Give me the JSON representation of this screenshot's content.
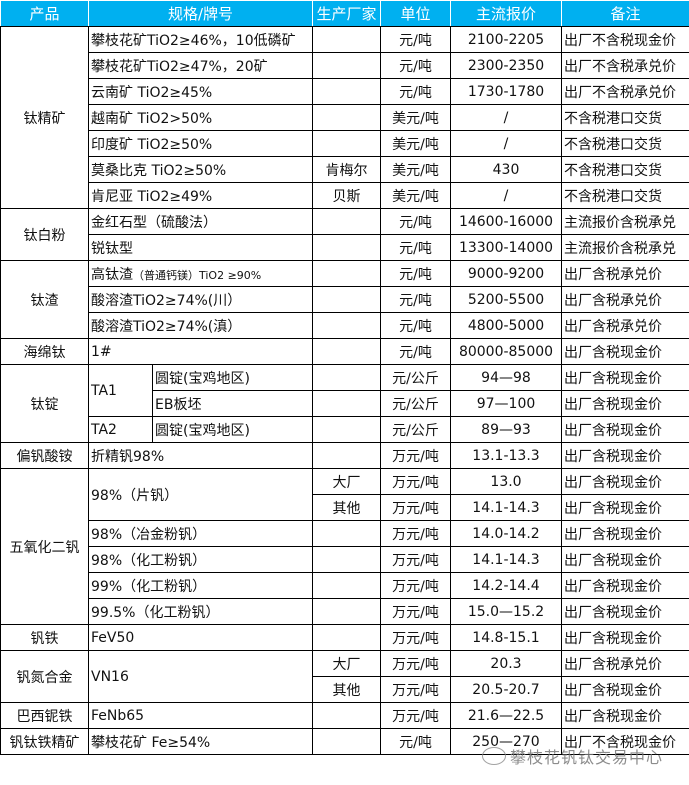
{
  "header": [
    "产品",
    "规格/牌号",
    "生产厂家",
    "单位",
    "主流报价",
    "备注"
  ],
  "products": [
    "钛精矿",
    "钛白粉",
    "钛渣",
    "海绵钛",
    "钛锭",
    "偏钒酸铵",
    "五氧化二钒",
    "钒铁",
    "钒氮合金",
    "巴西铌铁",
    "钒钛铁精矿"
  ],
  "rows": [
    {
      "spec": "攀枝花矿TiO2≥46%，10低磷矿",
      "maker": "",
      "unit": "元/吨",
      "price": "2100-2205",
      "note": "出厂不含税现金价"
    },
    {
      "spec": "攀枝花矿TiO2≥47%，20矿",
      "maker": "",
      "unit": "元/吨",
      "price": "2300-2350",
      "note": "出厂不含税承兑价"
    },
    {
      "spec": "云南矿 TiO2≥45%",
      "maker": "",
      "unit": "元/吨",
      "price": "1730-1780",
      "note": "出厂不含税承兑价"
    },
    {
      "spec": "越南矿 TiO2>50%",
      "maker": "",
      "unit": "美元/吨",
      "price": "/",
      "note": "不含税港口交货"
    },
    {
      "spec": "印度矿 TiO2≥50%",
      "maker": "",
      "unit": "美元/吨",
      "price": "/",
      "note": "不含税港口交货"
    },
    {
      "spec": "莫桑比克 TiO2≥50%",
      "maker": "肯梅尔",
      "unit": "美元/吨",
      "price": "430",
      "note": "不含税港口交货"
    },
    {
      "spec": "肯尼亚 TiO2≥49%",
      "maker": "贝斯",
      "unit": "美元/吨",
      "price": "/",
      "note": "不含税港口交货"
    },
    {
      "spec": "金红石型（硫酸法）",
      "maker": "",
      "unit": "元/吨",
      "price": "14600-16000",
      "note": "主流报价含税承兑"
    },
    {
      "spec": "锐钛型",
      "maker": "",
      "unit": "元/吨",
      "price": "13300-14000",
      "note": "主流报价含税承兑"
    },
    {
      "spec": "高钛渣",
      "spec_small": "（普通钙镁）TiO2 ≥90%",
      "maker": "",
      "unit": "元/吨",
      "price": "9000-9200",
      "note": "出厂含税承兑价"
    },
    {
      "spec": "酸溶渣TiO2≥74%(川）",
      "maker": "",
      "unit": "元/吨",
      "price": "5200-5500",
      "note": "出厂含税承兑价"
    },
    {
      "spec": "酸溶渣TiO2≥74%(滇）",
      "maker": "",
      "unit": "元/吨",
      "price": "4800-5000",
      "note": "出厂含税承兑价"
    },
    {
      "spec": "1#",
      "maker": "",
      "unit": "元/吨",
      "price": "80000-85000",
      "note": "出厂含税现金价"
    },
    {
      "spec": "TA1",
      "sub": "圆锭(宝鸡地区)",
      "maker": "",
      "unit": "元/公斤",
      "price": "94—98",
      "note": "出厂含税现金价"
    },
    {
      "sub": "EB板坯",
      "maker": "",
      "unit": "元/公斤",
      "price": "97—100",
      "note": "出厂含税现金价"
    },
    {
      "spec": "TA2",
      "sub": "圆锭(宝鸡地区)",
      "maker": "",
      "unit": "元/公斤",
      "price": "89—93",
      "note": "出厂含税现金价"
    },
    {
      "spec": "折精钒98%",
      "maker": "",
      "unit": "万元/吨",
      "price": "13.1-13.3",
      "note": "出厂含税现金价"
    },
    {
      "spec": "98%（片钒）",
      "maker": "大厂",
      "unit": "万元/吨",
      "price": "13.0",
      "note": "出厂含税现金价"
    },
    {
      "maker": "其他",
      "unit": "万元/吨",
      "price": "14.1-14.3",
      "note": "出厂含税现金价"
    },
    {
      "spec": "98%（冶金粉钒）",
      "maker": "",
      "unit": "万元/吨",
      "price": "14.0-14.2",
      "note": "出厂含税现金价"
    },
    {
      "spec": "98%（化工粉钒）",
      "maker": "",
      "unit": "万元/吨",
      "price": "14.1-14.3",
      "note": "出厂含税现金价"
    },
    {
      "spec": "99%（化工粉钒）",
      "maker": "",
      "unit": "万元/吨",
      "price": "14.2-14.4",
      "note": "出厂含税现金价"
    },
    {
      "spec": "99.5%（化工粉钒）",
      "maker": "",
      "unit": "万元/吨",
      "price": "15.0—15.2",
      "note": "出厂含税现金价"
    },
    {
      "spec": "FeV50",
      "maker": "",
      "unit": "万元/吨",
      "price": "14.8-15.1",
      "note": "出厂含税现金价"
    },
    {
      "spec": "VN16",
      "maker": "大厂",
      "unit": "万元/吨",
      "price": "20.3",
      "note": "出厂含税承兑价"
    },
    {
      "maker": "其他",
      "unit": "万元/吨",
      "price": "20.5-20.7",
      "note": "出厂含税现金价"
    },
    {
      "spec": "FeNb65",
      "maker": "",
      "unit": "万元/吨",
      "price": "21.6—22.5",
      "note": "出厂含税现金价"
    },
    {
      "spec": "攀枝花矿 Fe≥54%",
      "maker": "",
      "unit": "元/吨",
      "price": "250—270",
      "note": "出厂不含税现金价"
    }
  ],
  "watermark": "攀枝花钒钛交易中心",
  "colors": {
    "header_bg": "#00b0f0",
    "header_text": "#ffffff"
  }
}
